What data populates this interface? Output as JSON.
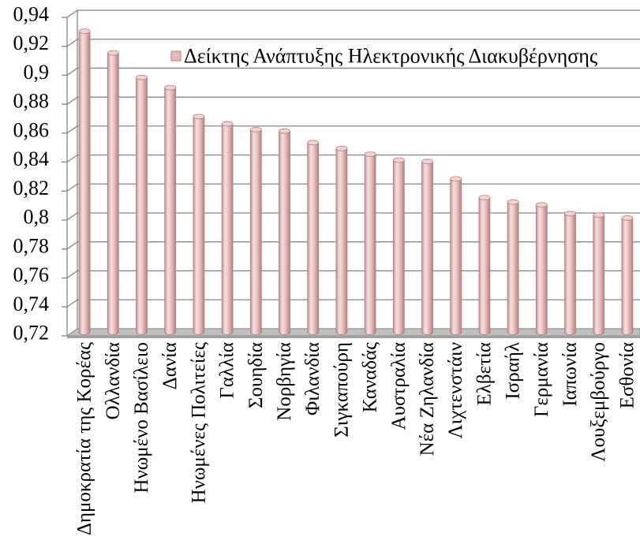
{
  "chart_data": {
    "type": "bar",
    "categories": [
      "Δημοκρατία της Κορέας",
      "Ολλανδία",
      "Ηνωμένο Βασίλειο",
      "Δανία",
      "Ηνωμένες Πολιτείες",
      "Γαλλία",
      "Σουηδία",
      "Νορβηγία",
      "Φιλανδία",
      "Σιγκαπούρη",
      "Καναδάς",
      "Αυστραλία",
      "Νέα Ζηλανδία",
      "Λιχτενστάιν",
      "Ελβετία",
      "Ισραήλ",
      "Γερμανία",
      "Ιαπωνία",
      "Λουξεμβούργο",
      "Εσθονία"
    ],
    "series": [
      {
        "name": "Δείκτης Ανάπτυξης Ηλεκτρονικής Διακυβέρνησης",
        "values": [
          0.928,
          0.913,
          0.896,
          0.889,
          0.869,
          0.864,
          0.86,
          0.859,
          0.851,
          0.847,
          0.843,
          0.839,
          0.838,
          0.826,
          0.813,
          0.81,
          0.808,
          0.802,
          0.801,
          0.799
        ]
      }
    ],
    "ylim": [
      0.72,
      0.94
    ],
    "yticks": [
      0.72,
      0.74,
      0.76,
      0.78,
      0.8,
      0.82,
      0.84,
      0.86,
      0.88,
      0.9,
      0.92,
      0.94
    ],
    "ytick_labels": [
      "0,72",
      "0,74",
      "0,76",
      "0,78",
      "0,8",
      "0,82",
      "0,84",
      "0,86",
      "0,88",
      "0,9",
      "0,92",
      "0,94"
    ],
    "xlabel": "",
    "ylabel": "",
    "grid": true,
    "legend_position": "top-center",
    "style": "3d-cylinder",
    "colors": {
      "bar": "#e6b9b8",
      "bar_top": "#f0d4d3",
      "bar_edge": "#b47f7e",
      "grid": "#868686",
      "floor": "#c0c0c0",
      "floor_front": "#a0a0a0"
    }
  }
}
